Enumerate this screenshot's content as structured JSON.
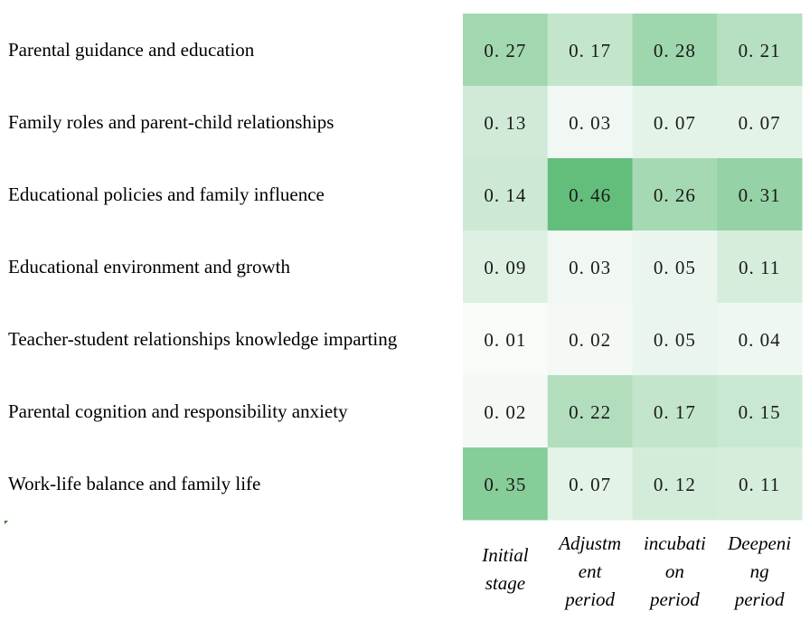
{
  "chart_data": {
    "type": "heatmap",
    "rows": [
      "Parental guidance and education",
      "Family roles and parent-child relationships",
      "Educational policies and family influence",
      "Educational environment and growth",
      "Teacher-student relationships knowledge imparting",
      "Parental cognition and responsibility anxiety",
      "Work-life balance and family life"
    ],
    "columns": [
      [
        "Initial",
        "stage"
      ],
      [
        "Adjustm",
        "ent",
        "period"
      ],
      [
        "incubati",
        "on",
        "period"
      ],
      [
        "Deepeni",
        "ng",
        "period"
      ]
    ],
    "values": [
      [
        0.27,
        0.17,
        0.28,
        0.21
      ],
      [
        0.13,
        0.03,
        0.07,
        0.07
      ],
      [
        0.14,
        0.46,
        0.26,
        0.31
      ],
      [
        0.09,
        0.03,
        0.05,
        0.11
      ],
      [
        0.01,
        0.02,
        0.05,
        0.04
      ],
      [
        0.02,
        0.22,
        0.17,
        0.15
      ],
      [
        0.35,
        0.07,
        0.12,
        0.11
      ]
    ],
    "value_labels": [
      [
        "0. 27",
        "0. 17",
        "0. 28",
        "0. 21"
      ],
      [
        "0. 13",
        "0. 03",
        "0. 07",
        "0. 07"
      ],
      [
        "0. 14",
        "0. 46",
        "0. 26",
        "0. 31"
      ],
      [
        "0. 09",
        "0. 03",
        "0. 05",
        "0. 11"
      ],
      [
        "0. 01",
        "0. 02",
        "0. 05",
        "0. 04"
      ],
      [
        "0. 02",
        "0. 22",
        "0. 17",
        "0. 15"
      ],
      [
        "0. 35",
        "0. 07",
        "0. 12",
        "0. 11"
      ]
    ],
    "colorscale": {
      "low": "#fbfcfb",
      "high": "#63be7b",
      "min": 0.0,
      "max": 0.46
    }
  }
}
